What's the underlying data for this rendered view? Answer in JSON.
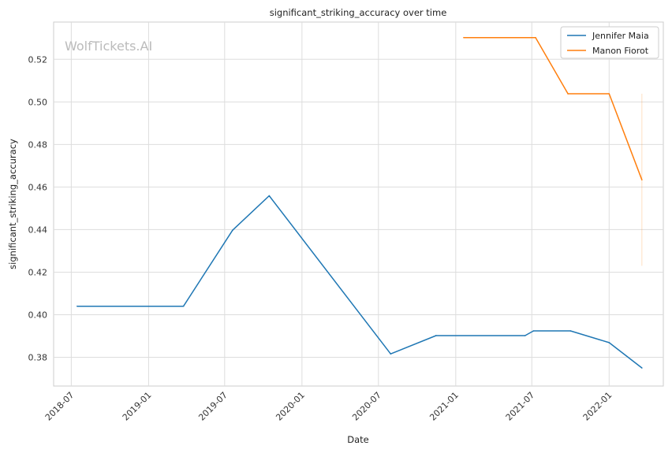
{
  "chart_data": {
    "type": "line",
    "title": "significant_striking_accuracy over time",
    "xlabel": "Date",
    "ylabel": "significant_striking_accuracy",
    "watermark": "WolfTickets.AI",
    "xlim": [
      "2018-05-20",
      "2022-05-10"
    ],
    "ylim": [
      0.3665,
      0.5375
    ],
    "x_ticks": [
      "2018-07",
      "2019-01",
      "2019-07",
      "2020-01",
      "2020-07",
      "2021-01",
      "2021-07",
      "2022-01"
    ],
    "y_ticks": [
      0.38,
      0.4,
      0.42,
      0.44,
      0.46,
      0.48,
      0.5,
      0.52
    ],
    "y_tick_labels": [
      "0.38",
      "0.40",
      "0.42",
      "0.44",
      "0.46",
      "0.48",
      "0.50",
      "0.52"
    ],
    "grid": true,
    "legend_position": "top-right",
    "series": [
      {
        "name": "Jennifer Maia",
        "color": "#1f77b4",
        "points": [
          {
            "x": "2018-07-15",
            "y": 0.404
          },
          {
            "x": "2019-03-25",
            "y": 0.404
          },
          {
            "x": "2019-07-20",
            "y": 0.4397
          },
          {
            "x": "2019-10-15",
            "y": 0.4559
          },
          {
            "x": "2020-07-30",
            "y": 0.3816
          },
          {
            "x": "2020-11-15",
            "y": 0.3902
          },
          {
            "x": "2021-06-15",
            "y": 0.3902
          },
          {
            "x": "2021-07-05",
            "y": 0.3924
          },
          {
            "x": "2021-10-01",
            "y": 0.3924
          },
          {
            "x": "2022-01-01",
            "y": 0.3869
          },
          {
            "x": "2022-03-20",
            "y": 0.375
          }
        ]
      },
      {
        "name": "Manon Fiorot",
        "color": "#ff7f0e",
        "points": [
          {
            "x": "2021-01-20",
            "y": 0.5302
          },
          {
            "x": "2021-07-10",
            "y": 0.5302
          },
          {
            "x": "2021-09-25",
            "y": 0.5038
          },
          {
            "x": "2022-01-01",
            "y": 0.5038
          },
          {
            "x": "2022-03-20",
            "y": 0.4634
          }
        ],
        "error_band": {
          "x": "2022-03-20",
          "y_low": 0.423,
          "y_high": 0.5038
        }
      }
    ]
  }
}
